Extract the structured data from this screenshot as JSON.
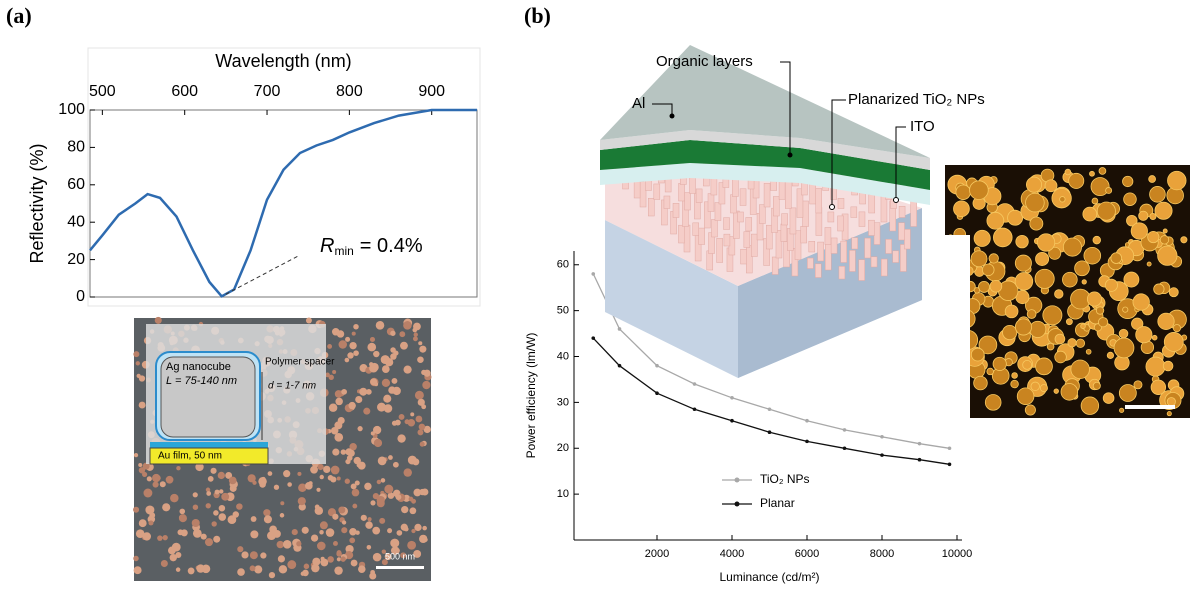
{
  "panel_labels": [
    "(a)",
    "(b)"
  ],
  "chart_data": [
    {
      "type": "line",
      "x_label": "Wavelength (nm)",
      "y_label": "Reflectivity (%)",
      "xaxis_position": "top",
      "x": [
        485,
        500,
        520,
        540,
        555,
        570,
        590,
        610,
        630,
        645,
        660,
        680,
        700,
        720,
        740,
        760,
        780,
        800,
        830,
        860,
        900,
        955
      ],
      "values": [
        25,
        33,
        44,
        50,
        55,
        53,
        43,
        25,
        8,
        0.4,
        4,
        25,
        52,
        68,
        77,
        81,
        84,
        88,
        93,
        97,
        100,
        100
      ],
      "color": "#2e6bb0",
      "xlim": [
        485,
        955
      ],
      "xticks": [
        500,
        600,
        700,
        800,
        900
      ],
      "ylim": [
        0,
        100
      ],
      "yticks": [
        0,
        20,
        40,
        60,
        80,
        100
      ],
      "grid": false,
      "annotation": {
        "symbol": "R",
        "subscript": "min",
        "text": "= 0.4%"
      }
    },
    {
      "type": "line",
      "x_label": "Luminance (cd/m²)",
      "y_label": "Power efficiency (lm/W)",
      "xaxis_position": "bottom",
      "markers": true,
      "x": [
        300,
        1000,
        2000,
        3000,
        4000,
        5000,
        6000,
        7000,
        8000,
        9000,
        9800
      ],
      "series": [
        {
          "name": "TiO₂ NPs",
          "color": "#a8a8a8",
          "values": [
            58,
            46,
            38,
            34,
            31,
            28.5,
            26,
            24,
            22.5,
            21,
            20
          ]
        },
        {
          "name": "Planar",
          "color": "#111111",
          "values": [
            44,
            38,
            32,
            28.5,
            26,
            23.5,
            21.5,
            20,
            18.5,
            17.5,
            16.5
          ]
        }
      ],
      "xlim": [
        0,
        10000
      ],
      "xticks": [
        2000,
        4000,
        6000,
        8000,
        10000
      ],
      "ylim": [
        0,
        63
      ],
      "yticks": [
        10,
        20,
        30,
        40,
        50,
        60
      ],
      "grid": false,
      "legend": "lower left"
    }
  ],
  "inset_a": {
    "cube": "Ag nanocube",
    "size": "L = 75-140 nm",
    "spacer": "Polymer spacer",
    "gap": "d = 1-7 nm",
    "film": "Au film, 50 nm",
    "scale": "500 nm"
  },
  "schematic_b": {
    "organic": "Organic layers",
    "al": "Al",
    "tio2": "Planarized TiO₂ NPs",
    "ito": "ITO"
  }
}
